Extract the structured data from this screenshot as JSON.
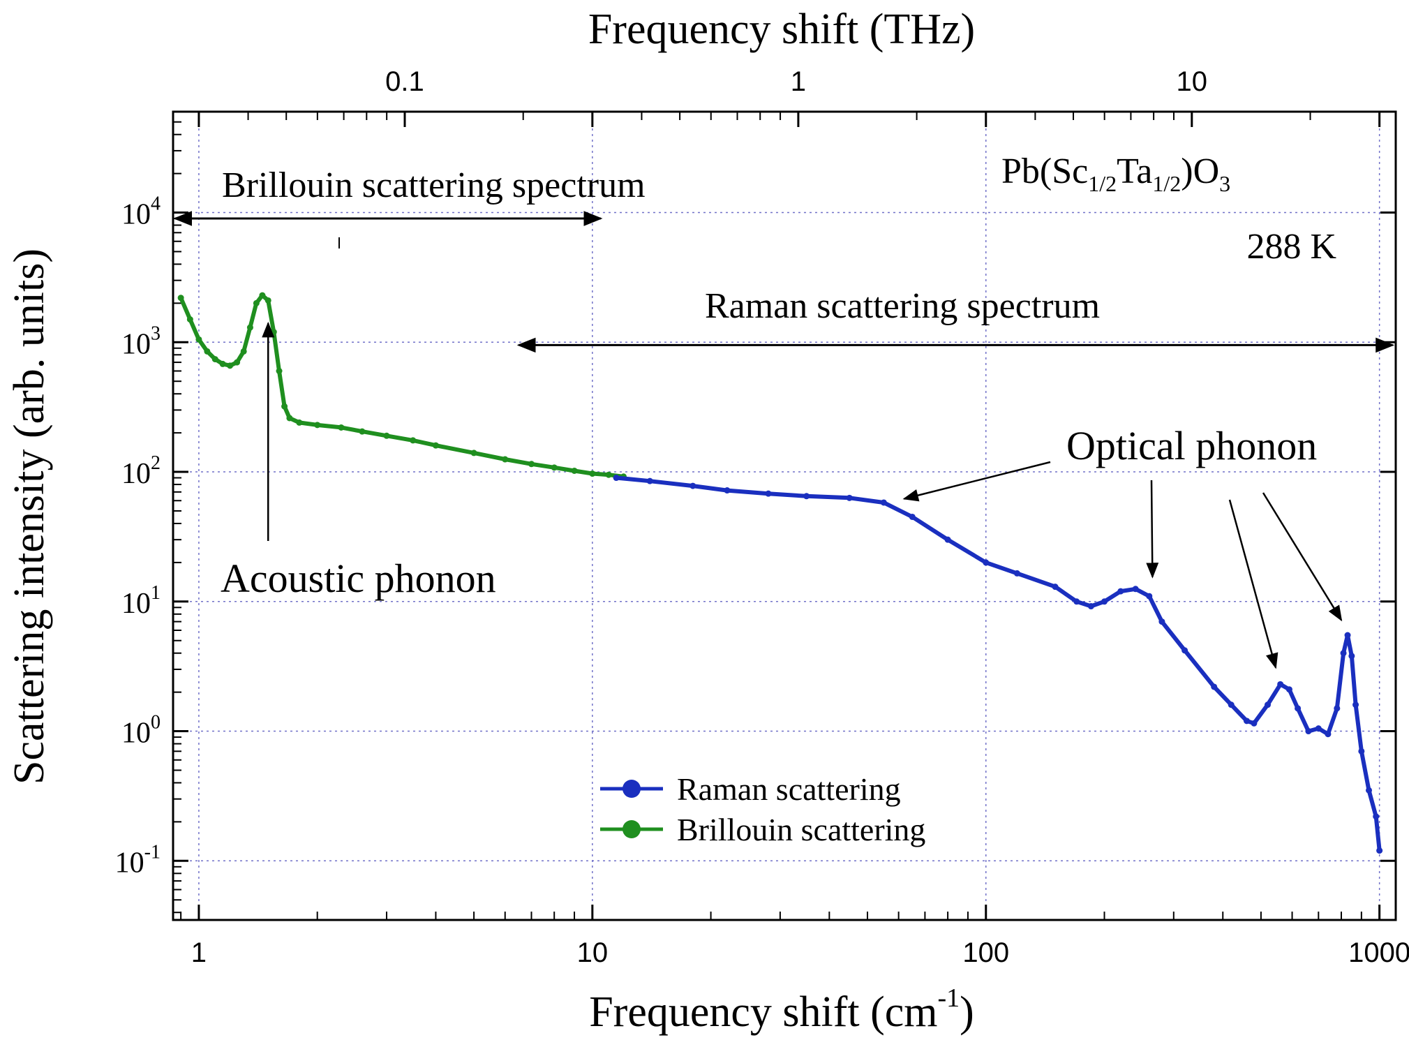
{
  "chart_data": {
    "type": "line",
    "title": "",
    "xlabel": "Frequency shift (cm",
    "xlabel_sup": "-1",
    "xlabel_close": ")",
    "top_xlabel": "Frequency shift (THz)",
    "ylabel": "Scattering intensity (arb. units)",
    "xscale": "log",
    "yscale": "log",
    "xlim": [
      0.86,
      1100
    ],
    "ylim": [
      0.035,
      60000
    ],
    "grid": true,
    "x_ticks": [
      {
        "value": 1,
        "label": "1"
      },
      {
        "value": 10,
        "label": "10"
      },
      {
        "value": 100,
        "label": "100"
      },
      {
        "value": 1000,
        "label": "1000"
      }
    ],
    "top_x_ticks": [
      {
        "thz": 0.1,
        "cm": 3.336,
        "label": "0.1"
      },
      {
        "thz": 1,
        "cm": 33.36,
        "label": "1"
      },
      {
        "thz": 10,
        "cm": 333.6,
        "label": "10"
      }
    ],
    "y_ticks": [
      {
        "value": 0.1,
        "base": "10",
        "exp": "-1"
      },
      {
        "value": 1,
        "base": "10",
        "exp": "0"
      },
      {
        "value": 10,
        "base": "10",
        "exp": "1"
      },
      {
        "value": 100,
        "base": "10",
        "exp": "2"
      },
      {
        "value": 1000,
        "base": "10",
        "exp": "3"
      },
      {
        "value": 10000,
        "base": "10",
        "exp": "4"
      }
    ],
    "series": [
      {
        "name": "Brillouin scattering",
        "color": "#1f8f1f",
        "x": [
          0.9,
          0.95,
          1.0,
          1.05,
          1.1,
          1.15,
          1.2,
          1.25,
          1.3,
          1.35,
          1.4,
          1.45,
          1.5,
          1.55,
          1.6,
          1.65,
          1.7,
          1.8,
          2.0,
          2.3,
          2.6,
          3.0,
          3.5,
          4.0,
          5.0,
          6.0,
          7.0,
          8.0,
          9.0,
          10.0,
          11.0,
          12.0
        ],
        "y": [
          2200,
          1500,
          1050,
          850,
          740,
          680,
          660,
          700,
          850,
          1300,
          2000,
          2300,
          2100,
          1200,
          600,
          320,
          260,
          240,
          230,
          220,
          205,
          190,
          175,
          160,
          140,
          125,
          115,
          108,
          102,
          97,
          95,
          92
        ]
      },
      {
        "name": "Raman scattering",
        "color": "#1a2fbf",
        "x": [
          11.5,
          14,
          18,
          22,
          28,
          35,
          45,
          55,
          65,
          80,
          100,
          120,
          150,
          170,
          185,
          200,
          220,
          240,
          260,
          280,
          320,
          380,
          420,
          460,
          480,
          520,
          560,
          590,
          620,
          660,
          700,
          740,
          780,
          810,
          830,
          850,
          870,
          900,
          940,
          980,
          1000
        ],
        "y": [
          90,
          85,
          78,
          72,
          68,
          65,
          63,
          58,
          45,
          30,
          20,
          16.5,
          13,
          10,
          9.2,
          10,
          12,
          12.5,
          11,
          7,
          4.2,
          2.2,
          1.6,
          1.2,
          1.15,
          1.6,
          2.3,
          2.1,
          1.5,
          1.0,
          1.05,
          0.95,
          1.5,
          4.0,
          5.5,
          3.8,
          1.6,
          0.7,
          0.35,
          0.22,
          0.12
        ]
      }
    ],
    "legend": {
      "position": "bottom-center",
      "entries": [
        {
          "label": "Raman scattering",
          "color": "#1a2fbf"
        },
        {
          "label": "Brillouin scattering",
          "color": "#1f8f1f"
        }
      ]
    },
    "annotations": {
      "sample_main": "Pb(Sc",
      "sample_sub1": "1/2",
      "sample_mid": "Ta",
      "sample_sub2": "1/2",
      "sample_close": ")O",
      "sample_sub3": "3",
      "temperature": "288 K",
      "brillouin_range": {
        "label": "Brillouin scattering spectrum",
        "x_from": 0.87,
        "x_to": 10.5,
        "y": 9000
      },
      "raman_range": {
        "label": "Raman scattering spectrum",
        "x_from": 6.5,
        "x_to": 1080,
        "y": 950
      },
      "acoustic_label": "Acoustic phonon",
      "optical_label": "Optical phonon"
    }
  }
}
